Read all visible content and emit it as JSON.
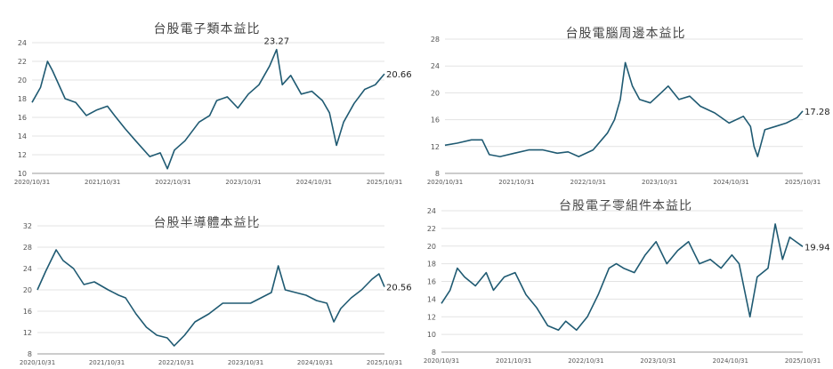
{
  "colors": {
    "line": "#1f5a72",
    "grid": "#e3e3e3",
    "text": "#444444"
  },
  "chart_data": [
    {
      "type": "line",
      "title": "台股電子類本益比",
      "x_tick_labels": [
        "2020/10/31",
        "2021/10/31",
        "2022/10/31",
        "2023/10/31",
        "2024/10/31",
        "2025/10/31"
      ],
      "ylim": [
        10,
        24
      ],
      "yticks": [
        10,
        12,
        14,
        16,
        18,
        20,
        22,
        24
      ],
      "grid": true,
      "annotations": [
        {
          "x": 2024.3,
          "y": 23.27,
          "text": "23.27"
        },
        {
          "x": 2025.83,
          "y": 20.66,
          "text": "20.66"
        }
      ],
      "series": [
        {
          "x": [
            2020.83,
            2020.95,
            2021.05,
            2021.12,
            2021.3,
            2021.45,
            2021.6,
            2021.75,
            2021.9,
            2022.0,
            2022.15,
            2022.3,
            2022.5,
            2022.65,
            2022.75,
            2022.85,
            2023.0,
            2023.2,
            2023.35,
            2023.45,
            2023.6,
            2023.75,
            2023.9,
            2024.05,
            2024.2,
            2024.3,
            2024.38,
            2024.5,
            2024.65,
            2024.8,
            2024.95,
            2025.05,
            2025.15,
            2025.25,
            2025.4,
            2025.55,
            2025.7,
            2025.83
          ],
          "y": [
            17.6,
            19.2,
            22.0,
            21.0,
            18.0,
            17.6,
            16.2,
            16.8,
            17.2,
            16.2,
            14.8,
            13.5,
            11.8,
            12.2,
            10.5,
            12.5,
            13.5,
            15.5,
            16.2,
            17.8,
            18.2,
            17.0,
            18.5,
            19.5,
            21.5,
            23.27,
            19.5,
            20.5,
            18.5,
            18.8,
            17.8,
            16.5,
            13.0,
            15.5,
            17.5,
            19.0,
            19.5,
            20.66
          ]
        }
      ]
    },
    {
      "type": "line",
      "title": "台股電腦周邊本益比",
      "x_tick_labels": [
        "2020/10/31",
        "2021/10/31",
        "2022/10/31",
        "2023/10/31",
        "2024/10/31",
        "2025/10/31"
      ],
      "ylim": [
        8,
        28
      ],
      "yticks": [
        8,
        12,
        16,
        20,
        24,
        28
      ],
      "grid": true,
      "annotations": [
        {
          "x": 2025.83,
          "y": 17.28,
          "text": "17.28"
        }
      ],
      "series": [
        {
          "x": [
            2020.83,
            2021.0,
            2021.2,
            2021.35,
            2021.45,
            2021.6,
            2021.8,
            2022.0,
            2022.2,
            2022.4,
            2022.55,
            2022.7,
            2022.9,
            2023.1,
            2023.2,
            2023.28,
            2023.35,
            2023.45,
            2023.55,
            2023.7,
            2023.85,
            2023.95,
            2024.1,
            2024.25,
            2024.4,
            2024.6,
            2024.8,
            2025.0,
            2025.1,
            2025.15,
            2025.2,
            2025.3,
            2025.45,
            2025.6,
            2025.75,
            2025.83
          ],
          "y": [
            12.2,
            12.5,
            13.0,
            13.0,
            10.8,
            10.5,
            11.0,
            11.5,
            11.5,
            11.0,
            11.2,
            10.5,
            11.5,
            14.0,
            16.0,
            19.0,
            24.5,
            21.0,
            19.0,
            18.5,
            20.0,
            21.0,
            19.0,
            19.5,
            18.0,
            17.0,
            15.5,
            16.5,
            15.0,
            12.0,
            10.5,
            14.5,
            15.0,
            15.5,
            16.3,
            17.28
          ]
        }
      ]
    },
    {
      "type": "line",
      "title": "台股半導體本益比",
      "x_tick_labels": [
        "2020/10/31",
        "2021/10/31",
        "2022/10/31",
        "2023/10/31",
        "2024/10/31",
        "2025/10/31"
      ],
      "ylim": [
        8,
        32
      ],
      "yticks": [
        8,
        12,
        16,
        20,
        24,
        28,
        32
      ],
      "grid": true,
      "annotations": [
        {
          "x": 2025.83,
          "y": 20.56,
          "text": "20.56"
        }
      ],
      "series": [
        {
          "x": [
            2020.83,
            2020.95,
            2021.1,
            2021.2,
            2021.35,
            2021.5,
            2021.65,
            2021.85,
            2022.0,
            2022.1,
            2022.25,
            2022.4,
            2022.55,
            2022.7,
            2022.8,
            2022.95,
            2023.1,
            2023.3,
            2023.5,
            2023.7,
            2023.9,
            2024.05,
            2024.2,
            2024.3,
            2024.4,
            2024.55,
            2024.7,
            2024.85,
            2025.0,
            2025.1,
            2025.2,
            2025.35,
            2025.5,
            2025.65,
            2025.75,
            2025.83
          ],
          "y": [
            20.0,
            23.5,
            27.5,
            25.5,
            24.0,
            21.0,
            21.5,
            20.0,
            19.0,
            18.5,
            15.5,
            13.0,
            11.5,
            11.0,
            9.5,
            11.5,
            14.0,
            15.5,
            17.5,
            17.5,
            17.5,
            18.5,
            19.5,
            24.5,
            20.0,
            19.5,
            19.0,
            18.0,
            17.5,
            14.0,
            16.5,
            18.5,
            20.0,
            22.0,
            23.0,
            20.56
          ]
        }
      ]
    },
    {
      "type": "line",
      "title": "台股電子零組件本益比",
      "x_tick_labels": [
        "2020/10/31",
        "2021/10/31",
        "2022/10/31",
        "2023/10/31",
        "2024/10/31",
        "2025/10/31"
      ],
      "ylim": [
        8,
        24
      ],
      "yticks": [
        8,
        10,
        12,
        14,
        16,
        18,
        20,
        22,
        24
      ],
      "grid": true,
      "annotations": [
        {
          "x": 2025.83,
          "y": 19.94,
          "text": "19.94"
        }
      ],
      "series": [
        {
          "x": [
            2020.83,
            2020.95,
            2021.05,
            2021.15,
            2021.3,
            2021.45,
            2021.55,
            2021.7,
            2021.85,
            2022.0,
            2022.15,
            2022.3,
            2022.45,
            2022.55,
            2022.7,
            2022.85,
            2023.0,
            2023.15,
            2023.25,
            2023.35,
            2023.5,
            2023.65,
            2023.8,
            2023.95,
            2024.1,
            2024.25,
            2024.4,
            2024.55,
            2024.7,
            2024.85,
            2024.95,
            2025.1,
            2025.2,
            2025.35,
            2025.45,
            2025.55,
            2025.65,
            2025.83
          ],
          "y": [
            13.5,
            15.0,
            17.5,
            16.5,
            15.5,
            17.0,
            15.0,
            16.5,
            17.0,
            14.5,
            13.0,
            11.0,
            10.5,
            11.5,
            10.5,
            12.0,
            14.5,
            17.5,
            18.0,
            17.5,
            17.0,
            19.0,
            20.5,
            18.0,
            19.5,
            20.5,
            18.0,
            18.5,
            17.5,
            19.0,
            18.0,
            12.0,
            16.5,
            17.5,
            22.5,
            18.5,
            21.0,
            19.94
          ]
        }
      ]
    }
  ]
}
